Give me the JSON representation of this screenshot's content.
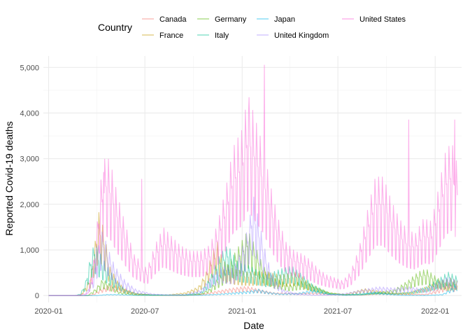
{
  "chart_data": {
    "type": "line",
    "xlabel": "Date",
    "ylabel": "Reported Covid-19 deaths",
    "legend": {
      "title": "Country",
      "placement": "top"
    },
    "grid": true,
    "xlim": [
      "2019-12-22",
      "2022-02-20"
    ],
    "ylim": [
      -150,
      5250
    ],
    "x_ticks": [
      {
        "date": "2020-01-01",
        "label": "2020-01"
      },
      {
        "date": "2020-07-01",
        "label": "2020-07"
      },
      {
        "date": "2021-01-01",
        "label": "2021-01"
      },
      {
        "date": "2021-07-01",
        "label": "2021-07"
      },
      {
        "date": "2022-01-01",
        "label": "2022-01"
      }
    ],
    "y_ticks": [
      {
        "value": 0,
        "label": "0"
      },
      {
        "value": 1000,
        "label": "1,000"
      },
      {
        "value": 2000,
        "label": "2,000"
      },
      {
        "value": 3000,
        "label": "3,000"
      },
      {
        "value": 4000,
        "label": "4,000"
      },
      {
        "value": 5000,
        "label": "5,000"
      }
    ],
    "series": [
      {
        "name": "Canada",
        "color": "#F8766D",
        "points": [
          [
            "2020-01-01",
            0
          ],
          [
            "2020-03-10",
            0
          ],
          [
            "2020-03-25",
            20
          ],
          [
            "2020-04-10",
            120
          ],
          [
            "2020-04-25",
            180
          ],
          [
            "2020-05-10",
            160
          ],
          [
            "2020-05-25",
            120
          ],
          [
            "2020-06-15",
            40
          ],
          [
            "2020-07-15",
            10
          ],
          [
            "2020-08-15",
            5
          ],
          [
            "2020-09-15",
            5
          ],
          [
            "2020-10-15",
            25
          ],
          [
            "2020-11-15",
            80
          ],
          [
            "2020-12-15",
            130
          ],
          [
            "2021-01-10",
            160
          ],
          [
            "2021-02-01",
            110
          ],
          [
            "2021-03-01",
            50
          ],
          [
            "2021-04-15",
            40
          ],
          [
            "2021-05-15",
            50
          ],
          [
            "2021-06-15",
            25
          ],
          [
            "2021-07-15",
            10
          ],
          [
            "2021-08-15",
            15
          ],
          [
            "2021-09-15",
            40
          ],
          [
            "2021-10-15",
            40
          ],
          [
            "2021-11-15",
            25
          ],
          [
            "2021-12-15",
            25
          ],
          [
            "2022-01-10",
            110
          ],
          [
            "2022-01-25",
            200
          ],
          [
            "2022-02-10",
            140
          ]
        ]
      },
      {
        "name": "France",
        "color": "#C49A00",
        "points": [
          [
            "2020-01-01",
            0
          ],
          [
            "2020-03-01",
            0
          ],
          [
            "2020-03-20",
            300
          ],
          [
            "2020-04-05",
            1400
          ],
          [
            "2020-04-15",
            1100
          ],
          [
            "2020-04-25",
            500
          ],
          [
            "2020-05-10",
            250
          ],
          [
            "2020-05-25",
            100
          ],
          [
            "2020-06-15",
            30
          ],
          [
            "2020-07-15",
            15
          ],
          [
            "2020-08-15",
            15
          ],
          [
            "2020-09-15",
            50
          ],
          [
            "2020-10-10",
            150
          ],
          [
            "2020-10-25",
            400
          ],
          [
            "2020-11-05",
            700
          ],
          [
            "2020-11-15",
            900
          ],
          [
            "2020-11-25",
            600
          ],
          [
            "2020-12-15",
            450
          ],
          [
            "2021-01-10",
            400
          ],
          [
            "2021-02-15",
            400
          ],
          [
            "2021-03-15",
            350
          ],
          [
            "2021-04-15",
            400
          ],
          [
            "2021-05-15",
            150
          ],
          [
            "2021-06-15",
            50
          ],
          [
            "2021-07-15",
            20
          ],
          [
            "2021-08-20",
            120
          ],
          [
            "2021-09-15",
            80
          ],
          [
            "2021-10-15",
            40
          ],
          [
            "2021-11-15",
            60
          ],
          [
            "2021-12-15",
            150
          ],
          [
            "2022-01-10",
            250
          ],
          [
            "2022-02-01",
            300
          ],
          [
            "2022-02-12",
            220
          ]
        ]
      },
      {
        "name": "Germany",
        "color": "#53B400",
        "points": [
          [
            "2020-01-01",
            0
          ],
          [
            "2020-03-15",
            0
          ],
          [
            "2020-03-30",
            120
          ],
          [
            "2020-04-12",
            280
          ],
          [
            "2020-04-25",
            200
          ],
          [
            "2020-05-15",
            60
          ],
          [
            "2020-06-15",
            10
          ],
          [
            "2020-07-15",
            5
          ],
          [
            "2020-08-15",
            5
          ],
          [
            "2020-09-15",
            5
          ],
          [
            "2020-10-15",
            30
          ],
          [
            "2020-11-01",
            120
          ],
          [
            "2020-11-20",
            350
          ],
          [
            "2020-12-10",
            600
          ],
          [
            "2020-12-30",
            900
          ],
          [
            "2021-01-12",
            1100
          ],
          [
            "2021-01-25",
            850
          ],
          [
            "2021-02-10",
            500
          ],
          [
            "2021-03-01",
            300
          ],
          [
            "2021-04-01",
            180
          ],
          [
            "2021-04-25",
            250
          ],
          [
            "2021-05-15",
            180
          ],
          [
            "2021-06-15",
            50
          ],
          [
            "2021-07-15",
            20
          ],
          [
            "2021-08-15",
            20
          ],
          [
            "2021-09-15",
            60
          ],
          [
            "2021-10-15",
            100
          ],
          [
            "2021-11-10",
            250
          ],
          [
            "2021-11-30",
            400
          ],
          [
            "2021-12-15",
            450
          ],
          [
            "2022-01-05",
            300
          ],
          [
            "2022-01-25",
            200
          ],
          [
            "2022-02-12",
            250
          ]
        ]
      },
      {
        "name": "Italy",
        "color": "#00C094",
        "points": [
          [
            "2020-01-01",
            0
          ],
          [
            "2020-02-20",
            0
          ],
          [
            "2020-03-01",
            30
          ],
          [
            "2020-03-10",
            200
          ],
          [
            "2020-03-20",
            650
          ],
          [
            "2020-03-28",
            900
          ],
          [
            "2020-04-05",
            750
          ],
          [
            "2020-04-20",
            500
          ],
          [
            "2020-05-05",
            300
          ],
          [
            "2020-05-25",
            100
          ],
          [
            "2020-06-15",
            40
          ],
          [
            "2020-07-15",
            15
          ],
          [
            "2020-08-15",
            10
          ],
          [
            "2020-09-15",
            15
          ],
          [
            "2020-10-15",
            60
          ],
          [
            "2020-11-01",
            300
          ],
          [
            "2020-11-20",
            700
          ],
          [
            "2020-12-05",
            850
          ],
          [
            "2020-12-25",
            550
          ],
          [
            "2021-01-15",
            500
          ],
          [
            "2021-02-15",
            350
          ],
          [
            "2021-03-15",
            450
          ],
          [
            "2021-04-05",
            500
          ],
          [
            "2021-04-25",
            350
          ],
          [
            "2021-05-15",
            180
          ],
          [
            "2021-06-15",
            40
          ],
          [
            "2021-07-15",
            15
          ],
          [
            "2021-08-15",
            40
          ],
          [
            "2021-09-15",
            60
          ],
          [
            "2021-10-15",
            40
          ],
          [
            "2021-11-15",
            60
          ],
          [
            "2021-12-15",
            150
          ],
          [
            "2022-01-10",
            300
          ],
          [
            "2022-01-25",
            400
          ],
          [
            "2022-02-12",
            320
          ]
        ]
      },
      {
        "name": "Japan",
        "color": "#00B6EB",
        "points": [
          [
            "2020-01-01",
            0
          ],
          [
            "2020-04-01",
            0
          ],
          [
            "2020-04-20",
            20
          ],
          [
            "2020-05-10",
            20
          ],
          [
            "2020-06-15",
            5
          ],
          [
            "2020-08-15",
            12
          ],
          [
            "2020-09-15",
            10
          ],
          [
            "2020-10-15",
            8
          ],
          [
            "2020-11-15",
            25
          ],
          [
            "2020-12-15",
            50
          ],
          [
            "2021-01-15",
            80
          ],
          [
            "2021-02-01",
            110
          ],
          [
            "2021-02-20",
            60
          ],
          [
            "2021-03-15",
            30
          ],
          [
            "2021-04-15",
            40
          ],
          [
            "2021-05-15",
            100
          ],
          [
            "2021-06-15",
            30
          ],
          [
            "2021-07-15",
            10
          ],
          [
            "2021-08-15",
            20
          ],
          [
            "2021-09-05",
            60
          ],
          [
            "2021-10-01",
            30
          ],
          [
            "2021-11-01",
            5
          ],
          [
            "2021-12-15",
            2
          ],
          [
            "2022-01-15",
            20
          ],
          [
            "2022-02-12",
            200
          ]
        ]
      },
      {
        "name": "United Kingdom",
        "color": "#A58AFF",
        "points": [
          [
            "2020-01-01",
            0
          ],
          [
            "2020-03-10",
            0
          ],
          [
            "2020-03-25",
            300
          ],
          [
            "2020-04-05",
            900
          ],
          [
            "2020-04-12",
            1100
          ],
          [
            "2020-04-22",
            800
          ],
          [
            "2020-05-05",
            500
          ],
          [
            "2020-05-25",
            250
          ],
          [
            "2020-06-15",
            100
          ],
          [
            "2020-07-15",
            30
          ],
          [
            "2020-08-15",
            10
          ],
          [
            "2020-09-15",
            15
          ],
          [
            "2020-10-15",
            100
          ],
          [
            "2020-11-05",
            350
          ],
          [
            "2020-11-25",
            500
          ],
          [
            "2020-12-15",
            450
          ],
          [
            "2021-01-05",
            900
          ],
          [
            "2021-01-15",
            1300
          ],
          [
            "2021-01-22",
            1700
          ],
          [
            "2021-02-01",
            1300
          ],
          [
            "2021-02-15",
            700
          ],
          [
            "2021-03-01",
            300
          ],
          [
            "2021-03-20",
            100
          ],
          [
            "2021-04-15",
            30
          ],
          [
            "2021-05-15",
            10
          ],
          [
            "2021-06-15",
            10
          ],
          [
            "2021-07-15",
            40
          ],
          [
            "2021-08-15",
            100
          ],
          [
            "2021-09-15",
            150
          ],
          [
            "2021-10-15",
            130
          ],
          [
            "2021-11-15",
            150
          ],
          [
            "2021-12-15",
            110
          ],
          [
            "2022-01-10",
            250
          ],
          [
            "2022-01-25",
            320
          ],
          [
            "2022-02-12",
            250
          ]
        ]
      },
      {
        "name": "United States",
        "color": "#FB61D7",
        "points": [
          [
            "2020-01-01",
            0
          ],
          [
            "2020-02-25",
            0
          ],
          [
            "2020-03-15",
            50
          ],
          [
            "2020-03-28",
            700
          ],
          [
            "2020-04-08",
            1900
          ],
          [
            "2020-04-18",
            2400
          ],
          [
            "2020-04-28",
            2200
          ],
          [
            "2020-05-10",
            1700
          ],
          [
            "2020-05-25",
            1200
          ],
          [
            "2020-06-10",
            700
          ],
          [
            "2020-06-25",
            550
          ],
          [
            "2020-07-05",
            450
          ],
          [
            "2020-07-20",
            850
          ],
          [
            "2020-08-05",
            1150
          ],
          [
            "2020-08-20",
            1000
          ],
          [
            "2020-09-05",
            850
          ],
          [
            "2020-09-25",
            750
          ],
          [
            "2020-10-15",
            750
          ],
          [
            "2020-11-01",
            850
          ],
          [
            "2020-11-15",
            1200
          ],
          [
            "2020-12-01",
            1800
          ],
          [
            "2020-12-15",
            2500
          ],
          [
            "2021-01-01",
            2800
          ],
          [
            "2021-01-12",
            3400
          ],
          [
            "2021-01-25",
            3000
          ],
          [
            "2021-02-10",
            2500
          ],
          [
            "2021-02-25",
            1800
          ],
          [
            "2021-03-10",
            1300
          ],
          [
            "2021-03-25",
            900
          ],
          [
            "2021-04-10",
            750
          ],
          [
            "2021-04-25",
            700
          ],
          [
            "2021-05-10",
            600
          ],
          [
            "2021-05-25",
            450
          ],
          [
            "2021-06-10",
            350
          ],
          [
            "2021-06-25",
            300
          ],
          [
            "2021-07-10",
            250
          ],
          [
            "2021-07-25",
            400
          ],
          [
            "2021-08-10",
            800
          ],
          [
            "2021-08-25",
            1400
          ],
          [
            "2021-09-10",
            2000
          ],
          [
            "2021-09-25",
            2000
          ],
          [
            "2021-10-10",
            1600
          ],
          [
            "2021-10-25",
            1300
          ],
          [
            "2021-11-10",
            1100
          ],
          [
            "2021-11-25",
            1050
          ],
          [
            "2021-12-10",
            1300
          ],
          [
            "2021-12-25",
            1250
          ],
          [
            "2022-01-05",
            1700
          ],
          [
            "2022-01-20",
            2400
          ],
          [
            "2022-02-01",
            2600
          ],
          [
            "2022-02-12",
            2200
          ]
        ],
        "spikes": [
          [
            "2020-04-14",
            2700
          ],
          [
            "2020-06-25",
            2550
          ],
          [
            "2021-01-13",
            4000
          ],
          [
            "2021-02-12",
            5050
          ],
          [
            "2021-11-12",
            3850
          ],
          [
            "2022-02-07",
            3850
          ]
        ]
      }
    ]
  }
}
